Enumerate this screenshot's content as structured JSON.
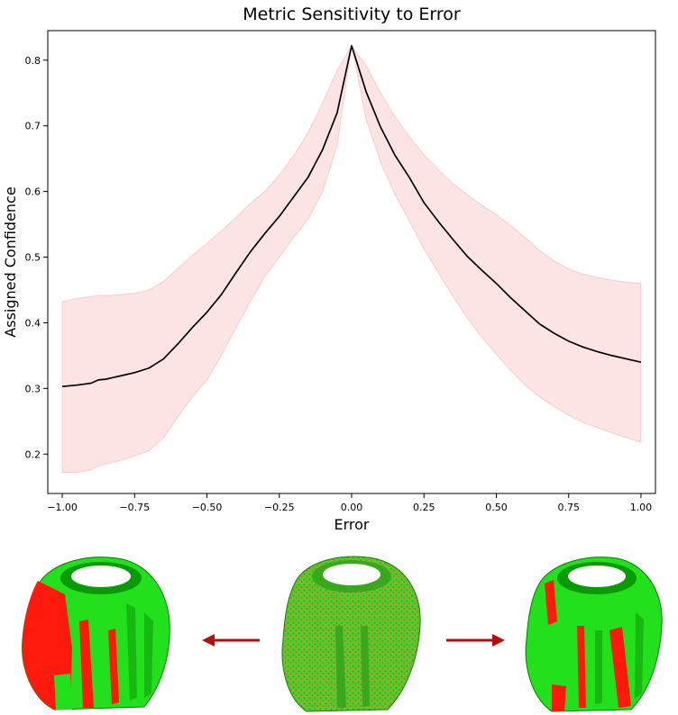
{
  "chart_data": {
    "type": "line",
    "title": "Metric Sensitivity to Error",
    "xlabel": "Error",
    "ylabel": "Assigned Confidence",
    "xlim": [
      -1.05,
      1.05
    ],
    "ylim": [
      0.14,
      0.845
    ],
    "xticks": [
      -1.0,
      -0.75,
      -0.5,
      -0.25,
      0.0,
      0.25,
      0.5,
      0.75,
      1.0
    ],
    "xtick_labels": [
      "−1.00",
      "−0.75",
      "−0.50",
      "−0.25",
      "0.00",
      "0.25",
      "0.50",
      "0.75",
      "1.00"
    ],
    "yticks": [
      0.2,
      0.3,
      0.4,
      0.5,
      0.6,
      0.7,
      0.8
    ],
    "ytick_labels": [
      "0.2",
      "0.3",
      "0.4",
      "0.5",
      "0.6",
      "0.7",
      "0.8"
    ],
    "grid": false,
    "legend": "none",
    "line_color": "#000000",
    "band_color": "#f4a6a6",
    "x": [
      -1.0,
      -0.95,
      -0.9,
      -0.875,
      -0.85,
      -0.8,
      -0.75,
      -0.7,
      -0.65,
      -0.6,
      -0.55,
      -0.5,
      -0.45,
      -0.4,
      -0.35,
      -0.3,
      -0.25,
      -0.2,
      -0.15,
      -0.1,
      -0.05,
      0.0,
      0.05,
      0.1,
      0.15,
      0.2,
      0.25,
      0.3,
      0.35,
      0.4,
      0.45,
      0.5,
      0.55,
      0.6,
      0.65,
      0.7,
      0.75,
      0.8,
      0.85,
      0.9,
      0.95,
      1.0
    ],
    "mean": [
      0.303,
      0.305,
      0.308,
      0.313,
      0.314,
      0.319,
      0.324,
      0.331,
      0.345,
      0.368,
      0.393,
      0.416,
      0.443,
      0.476,
      0.508,
      0.536,
      0.562,
      0.592,
      0.622,
      0.664,
      0.72,
      0.822,
      0.752,
      0.698,
      0.655,
      0.621,
      0.583,
      0.554,
      0.527,
      0.501,
      0.48,
      0.46,
      0.438,
      0.418,
      0.398,
      0.384,
      0.372,
      0.363,
      0.356,
      0.35,
      0.345,
      0.34
    ],
    "upper": [
      0.432,
      0.437,
      0.44,
      0.442,
      0.441,
      0.443,
      0.445,
      0.45,
      0.463,
      0.483,
      0.503,
      0.521,
      0.54,
      0.56,
      0.582,
      0.6,
      0.625,
      0.655,
      0.69,
      0.735,
      0.785,
      0.822,
      0.792,
      0.75,
      0.714,
      0.683,
      0.656,
      0.633,
      0.612,
      0.595,
      0.579,
      0.565,
      0.548,
      0.53,
      0.51,
      0.494,
      0.482,
      0.474,
      0.469,
      0.465,
      0.462,
      0.46
    ],
    "lower": [
      0.172,
      0.172,
      0.176,
      0.182,
      0.185,
      0.19,
      0.197,
      0.205,
      0.225,
      0.257,
      0.287,
      0.313,
      0.35,
      0.392,
      0.432,
      0.47,
      0.5,
      0.53,
      0.558,
      0.6,
      0.67,
      0.822,
      0.71,
      0.645,
      0.595,
      0.555,
      0.512,
      0.476,
      0.44,
      0.407,
      0.378,
      0.352,
      0.327,
      0.305,
      0.287,
      0.272,
      0.259,
      0.248,
      0.24,
      0.232,
      0.225,
      0.218
    ]
  },
  "renders": [
    {
      "name": "negative-error-mesh",
      "label": "",
      "colors": {
        "base": "#22e01c",
        "highlight": "#ff1a0d"
      }
    },
    {
      "name": "noise-mesh",
      "label": "",
      "colors": {
        "base": "#4fcf2a",
        "highlight": "#e05025"
      }
    },
    {
      "name": "positive-error-mesh",
      "label": "",
      "colors": {
        "base": "#22e01c",
        "highlight": "#ff1a0d"
      }
    }
  ],
  "arrow_color": "#b40f08"
}
